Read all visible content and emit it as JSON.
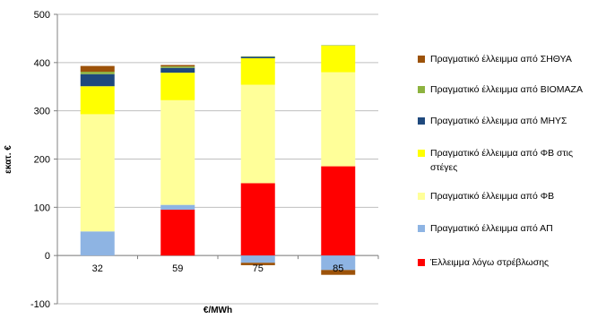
{
  "chart_data": {
    "type": "bar",
    "stacked": true,
    "title": "",
    "xlabel": "€/MWh",
    "ylabel": "εκατ. €",
    "ylim": [
      -100,
      500
    ],
    "yticks": [
      -100,
      0,
      100,
      200,
      300,
      400,
      500
    ],
    "categories": [
      "32",
      "59",
      "75",
      "85"
    ],
    "grid": true,
    "legend_position": "right",
    "series": [
      {
        "name": "Πραγματικό έλλειμμα από ΣΗΘΥΑ",
        "color": "#9C5209",
        "values": [
          12,
          3,
          0,
          0
        ]
      },
      {
        "name": "Πραγματικό έλλειμμα από ΒΙΟΜΑΖΑ",
        "color": "#8DB33F",
        "values": [
          5,
          3,
          1,
          1
        ]
      },
      {
        "name": "Πραγματικό έλλειμμα από ΜΗΥΣ",
        "color": "#1F497D",
        "values": [
          25,
          10,
          3,
          0
        ]
      },
      {
        "name": "Πραγματικό έλλειμμα από ΦΒ στις στέγες",
        "color": "#FFFF00",
        "values": [
          58,
          57,
          55,
          55
        ]
      },
      {
        "name": "Πραγματικό έλλειμμα από ΦΒ",
        "color": "#FFFF99",
        "values": [
          243,
          217,
          204,
          195
        ]
      },
      {
        "name": "Πραγματικό έλλειμμα από ΑΠ",
        "color": "#8EB4E3",
        "values": [
          50,
          10,
          -15,
          -30
        ]
      },
      {
        "name": "Έλλειμμα λόγω στρέβλωσης",
        "color": "#FF0000",
        "values": [
          0,
          95,
          150,
          185
        ]
      }
    ],
    "extra_negative": [
      {
        "name": "Πραγματικό έλλειμμα από ΣΗΘΥΑ",
        "color": "#9C5209",
        "values": [
          0,
          0,
          -5,
          -10
        ]
      }
    ]
  }
}
